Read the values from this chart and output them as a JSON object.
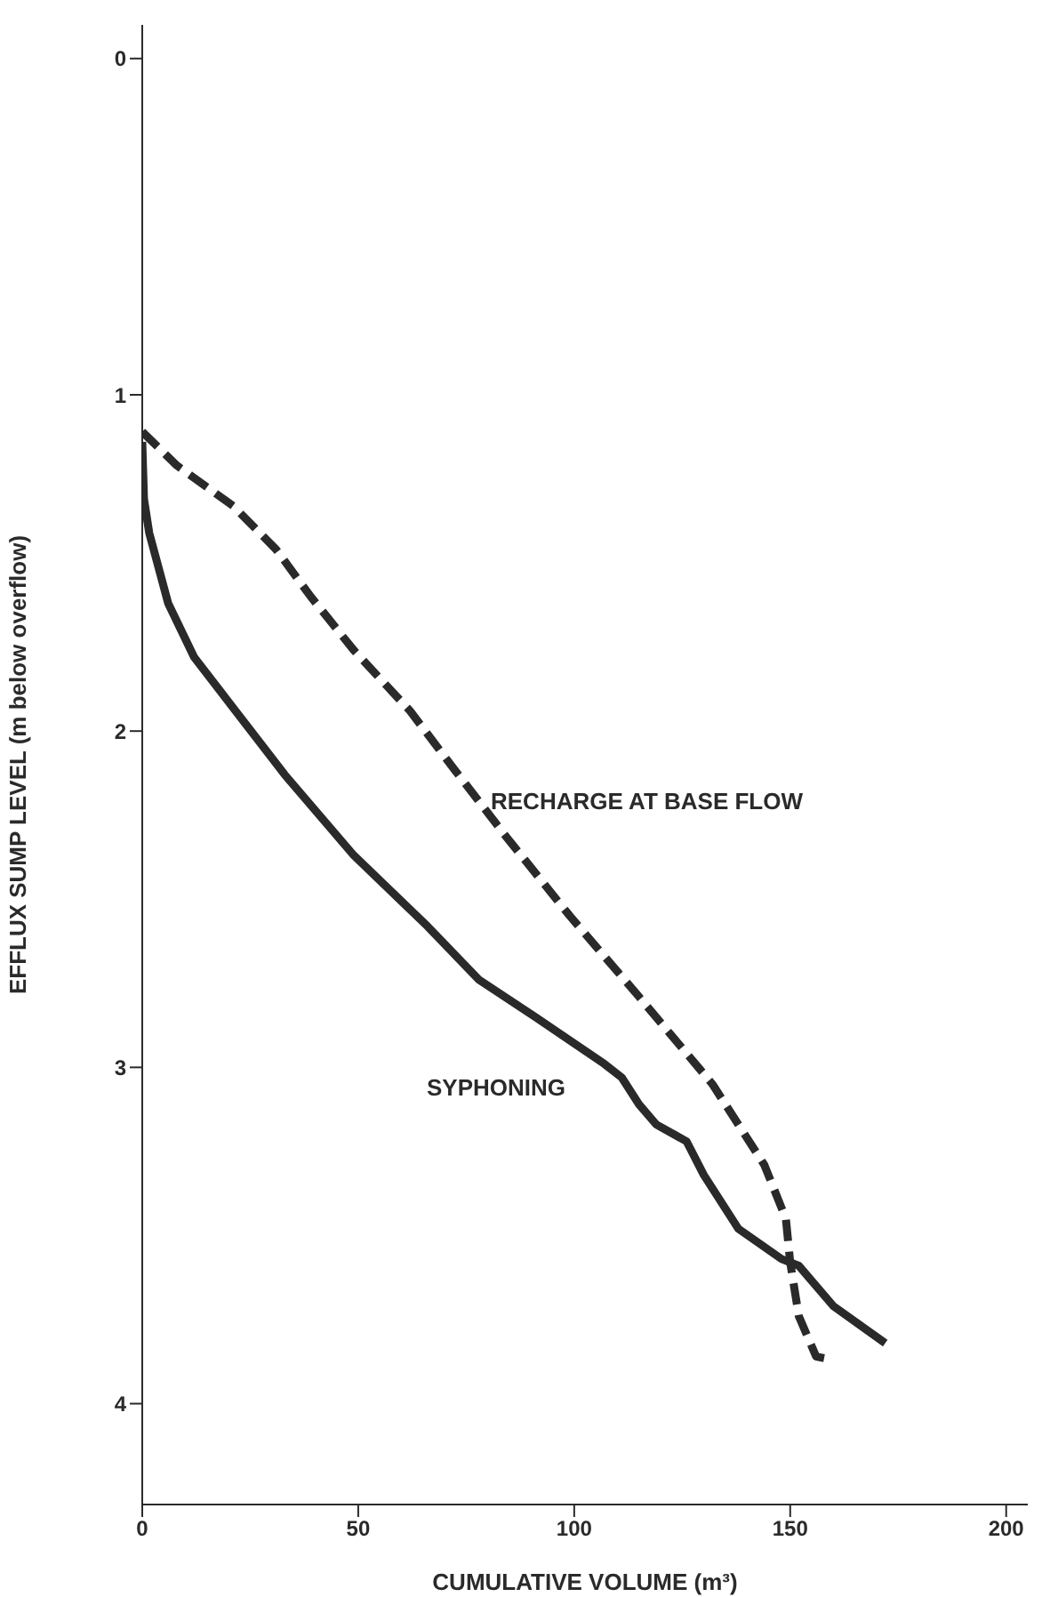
{
  "chart_data": {
    "type": "line",
    "xlabel": "CUMULATIVE VOLUME (m³)",
    "ylabel": "EFFLUX SUMP LEVEL (m below overflow)",
    "xlim": [
      0,
      205
    ],
    "ylim": [
      4.3,
      -0.1
    ],
    "xticks": [
      0,
      50,
      100,
      150,
      200
    ],
    "yticks": [
      0,
      1,
      2,
      3,
      4
    ],
    "marker": "none",
    "series": [
      {
        "name": "RECHARGE AT BASE FLOW",
        "color": "#2a2a2a",
        "line_style": "dashed",
        "x": [
          0,
          8,
          21,
          31,
          39,
          49,
          62,
          72,
          84,
          99,
          115,
          132,
          144,
          149,
          150,
          152,
          156,
          160
        ],
        "values": [
          1.11,
          1.21,
          1.33,
          1.46,
          1.6,
          1.76,
          1.94,
          2.11,
          2.31,
          2.55,
          2.79,
          3.05,
          3.29,
          3.45,
          3.58,
          3.74,
          3.86,
          3.87
        ]
      },
      {
        "name": "SYPHONING",
        "color": "#2a2a2a",
        "line_style": "solid",
        "x": [
          0,
          0.4,
          1.6,
          6,
          12,
          21,
          33,
          49,
          66,
          78,
          91,
          107,
          111,
          115,
          119,
          126,
          130,
          138,
          148,
          152,
          160,
          172
        ],
        "values": [
          1.14,
          1.31,
          1.41,
          1.62,
          1.78,
          1.93,
          2.13,
          2.37,
          2.58,
          2.74,
          2.85,
          2.99,
          3.03,
          3.11,
          3.17,
          3.22,
          3.32,
          3.48,
          3.57,
          3.59,
          3.71,
          3.82
        ]
      }
    ]
  }
}
